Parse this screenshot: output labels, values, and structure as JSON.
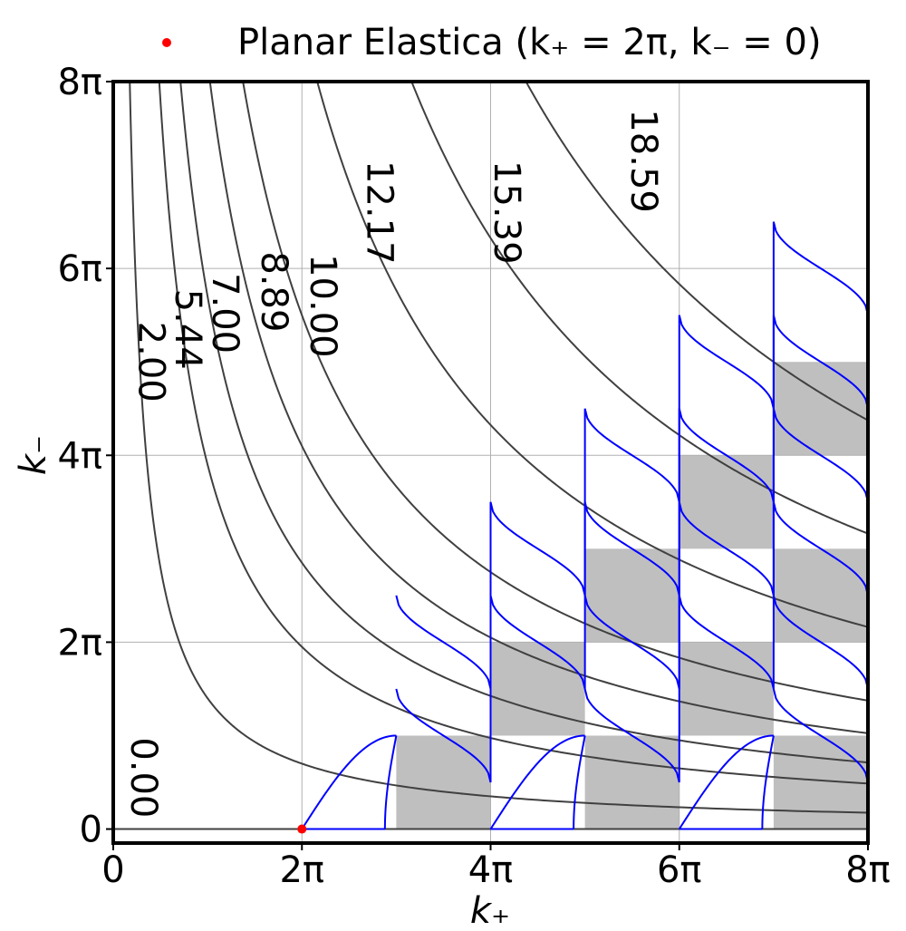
{
  "chart_data": {
    "type": "line",
    "xlabel": "k₊",
    "ylabel": "k₋",
    "xlim_pi": [
      0,
      8
    ],
    "ylim_pi": [
      -0.15,
      8
    ],
    "x_ticks": [
      {
        "value_pi": 0,
        "label": "0"
      },
      {
        "value_pi": 2,
        "label": "2π"
      },
      {
        "value_pi": 4,
        "label": "4π"
      },
      {
        "value_pi": 6,
        "label": "6π"
      },
      {
        "value_pi": 8,
        "label": "8π"
      }
    ],
    "y_ticks": [
      {
        "value_pi": 0,
        "label": "0"
      },
      {
        "value_pi": 2,
        "label": "2π"
      },
      {
        "value_pi": 4,
        "label": "4π"
      },
      {
        "value_pi": 6,
        "label": "6π"
      },
      {
        "value_pi": 8,
        "label": "8π"
      }
    ],
    "grid": true,
    "legend": {
      "position": "top",
      "label": "Planar Elastica (k₊ = 2π, k₋ = 0)",
      "marker_color": "#ff0000"
    },
    "marker_point": {
      "x_pi": 2,
      "y_pi": 0
    },
    "contours": [
      {
        "label": "0.00",
        "c_pi2": 0,
        "label_at_pi": [
          0.3,
          0.55
        ]
      },
      {
        "label": "2.00",
        "c_pi2": 1.4,
        "label_at_pi": [
          0.38,
          5.0
        ]
      },
      {
        "label": "5.44",
        "c_pi2": 3.9,
        "label_at_pi": [
          0.77,
          5.35
        ]
      },
      {
        "label": "7.00",
        "c_pi2": 5.7,
        "label_at_pi": [
          1.16,
          5.52
        ]
      },
      {
        "label": "8.89",
        "c_pi2": 8.2,
        "label_at_pi": [
          1.68,
          5.75
        ]
      },
      {
        "label": "10.00",
        "c_pi2": 11.0,
        "label_at_pi": [
          2.2,
          5.6
        ]
      },
      {
        "label": "12.17",
        "c_pi2": 17.3,
        "label_at_pi": [
          2.8,
          6.6
        ]
      },
      {
        "label": "15.39",
        "c_pi2": 25.3,
        "label_at_pi": [
          4.15,
          6.6
        ]
      },
      {
        "label": "18.59",
        "c_pi2": 35.0,
        "label_at_pi": [
          5.6,
          7.15
        ]
      }
    ],
    "shaded_squares_pi": [
      [
        3,
        0
      ],
      [
        5,
        0
      ],
      [
        7,
        0
      ],
      [
        4,
        1
      ],
      [
        6,
        1
      ],
      [
        5,
        2
      ],
      [
        7,
        2
      ],
      [
        6,
        3
      ],
      [
        7,
        4
      ]
    ],
    "colors": {
      "contour": "#404040",
      "branch": "#0000ff",
      "shade": "#bfbfbf",
      "grid": "#b0b0b0",
      "marker": "#ff0000"
    }
  }
}
